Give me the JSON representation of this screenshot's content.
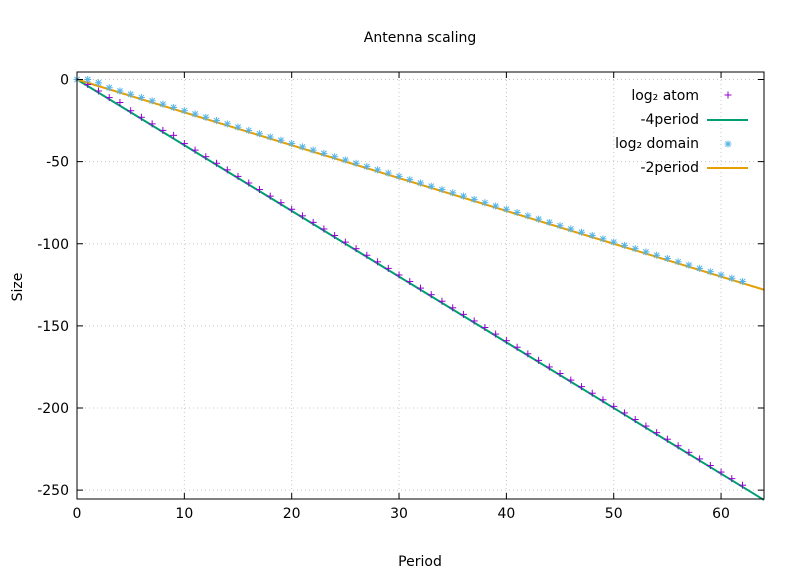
{
  "chart_data": {
    "type": "scatter",
    "title": "Antenna scaling",
    "xlabel": "Period",
    "ylabel": "Size",
    "xlim": [
      0,
      64
    ],
    "ylim": [
      -256,
      5
    ],
    "grid": true,
    "legend_position": "top-right",
    "x_ticks": [
      0,
      10,
      20,
      30,
      40,
      50,
      60
    ],
    "y_ticks": [
      0,
      -50,
      -100,
      -150,
      -200,
      -250
    ],
    "series": [
      {
        "name": "log₂ atom",
        "kind": "points",
        "marker": "plus",
        "color": "#9400d3",
        "x": [
          0,
          1,
          2,
          3,
          4,
          5,
          6,
          7,
          8,
          9,
          10,
          11,
          12,
          13,
          14,
          15,
          16,
          17,
          18,
          19,
          20,
          21,
          22,
          23,
          24,
          25,
          26,
          27,
          28,
          29,
          30,
          31,
          32,
          33,
          34,
          35,
          36,
          37,
          38,
          39,
          40,
          41,
          42,
          43,
          44,
          45,
          46,
          47,
          48,
          49,
          50,
          51,
          52,
          53,
          54,
          55,
          56,
          57,
          58,
          59,
          60,
          61,
          62
        ],
        "y": [
          0,
          -3,
          -7,
          -11,
          -14,
          -19,
          -23,
          -27,
          -31,
          -34,
          -39,
          -43,
          -47,
          -51,
          -55,
          -59,
          -63,
          -67,
          -71,
          -75,
          -79,
          -83,
          -87,
          -91,
          -95,
          -99,
          -103,
          -107,
          -111,
          -115,
          -119,
          -123,
          -127,
          -131,
          -135,
          -139,
          -143,
          -147,
          -151,
          -155,
          -159,
          -163,
          -167,
          -171,
          -175,
          -179,
          -183,
          -187,
          -191,
          -195,
          -199,
          -203,
          -207,
          -211,
          -215,
          -219,
          -223,
          -227,
          -231,
          -235,
          -239,
          -243,
          -247
        ]
      },
      {
        "name": "-4period",
        "kind": "line",
        "color": "#009e73",
        "slope": -4,
        "intercept": 0
      },
      {
        "name": "log₂ domain",
        "kind": "points",
        "marker": "star",
        "color": "#56b4e9",
        "x": [
          0,
          1,
          2,
          3,
          4,
          5,
          6,
          7,
          8,
          9,
          10,
          11,
          12,
          13,
          14,
          15,
          16,
          17,
          18,
          19,
          20,
          21,
          22,
          23,
          24,
          25,
          26,
          27,
          28,
          29,
          30,
          31,
          32,
          33,
          34,
          35,
          36,
          37,
          38,
          39,
          40,
          41,
          42,
          43,
          44,
          45,
          46,
          47,
          48,
          49,
          50,
          51,
          52,
          53,
          54,
          55,
          56,
          57,
          58,
          59,
          60,
          61,
          62
        ],
        "y": [
          0,
          0,
          -2,
          -5,
          -7,
          -9,
          -11,
          -13,
          -15,
          -17,
          -19,
          -21,
          -23,
          -25,
          -27,
          -29,
          -31,
          -33,
          -35,
          -37,
          -39,
          -41,
          -43,
          -45,
          -47,
          -49,
          -51,
          -53,
          -55,
          -57,
          -59,
          -61,
          -63,
          -65,
          -67,
          -69,
          -71,
          -73,
          -75,
          -77,
          -79,
          -81,
          -83,
          -85,
          -87,
          -89,
          -91,
          -93,
          -95,
          -97,
          -99,
          -101,
          -103,
          -105,
          -107,
          -109,
          -111,
          -113,
          -115,
          -117,
          -119,
          -121,
          -123
        ]
      },
      {
        "name": "-2period",
        "kind": "line",
        "color": "#e69f00",
        "slope": -2,
        "intercept": 0
      }
    ]
  }
}
